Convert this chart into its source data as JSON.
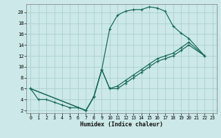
{
  "xlabel": "Humidex (Indice chaleur)",
  "bg_color": "#cce8e8",
  "grid_color": "#aad0d0",
  "line_color": "#1a6b5a",
  "xlim": [
    -0.5,
    23.5
  ],
  "ylim": [
    1.5,
    21.5
  ],
  "yticks": [
    2,
    4,
    6,
    8,
    10,
    12,
    14,
    16,
    18,
    20
  ],
  "xticks": [
    0,
    1,
    2,
    3,
    4,
    5,
    6,
    7,
    8,
    9,
    10,
    11,
    12,
    13,
    14,
    15,
    16,
    17,
    18,
    19,
    20,
    21,
    22,
    23
  ],
  "line1_x": [
    0,
    1,
    2,
    3,
    4,
    5,
    6,
    7,
    8,
    9,
    10,
    11,
    12,
    13,
    14,
    15,
    16,
    17,
    18,
    19,
    20,
    22
  ],
  "line1_y": [
    6,
    4,
    4,
    3.5,
    3,
    2.5,
    2.5,
    2,
    4.5,
    9.5,
    17,
    19.5,
    20.2,
    20.5,
    20.5,
    21.0,
    20.8,
    20.2,
    17.5,
    16.2,
    15.2,
    12.0
  ],
  "line2_x": [
    0,
    7,
    8,
    9,
    10,
    11,
    12,
    13,
    14,
    15,
    16,
    17,
    18,
    19,
    20,
    22
  ],
  "line2_y": [
    6,
    2,
    4.5,
    9.5,
    6,
    6,
    7,
    8,
    9,
    10,
    11,
    11.5,
    12,
    13,
    14,
    12
  ],
  "line3_x": [
    0,
    7,
    8,
    9,
    10,
    11,
    12,
    13,
    14,
    15,
    16,
    17,
    18,
    19,
    20,
    22
  ],
  "line3_y": [
    6,
    2.0,
    4.5,
    9.5,
    6,
    6.5,
    7.5,
    8.5,
    9.5,
    10.5,
    11.5,
    12.0,
    12.5,
    13.5,
    14.5,
    12.0
  ]
}
